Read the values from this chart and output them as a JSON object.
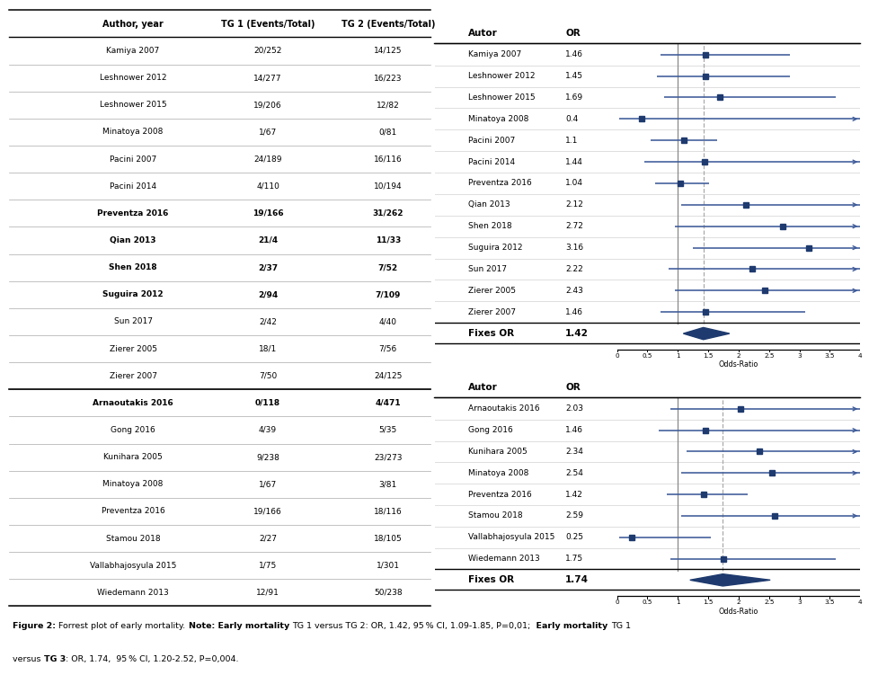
{
  "table_headers": [
    "Author, year",
    "TG 1 (Events/Total)",
    "TG 2 (Events/Total)"
  ],
  "group1_rows": [
    [
      "Kamiya 2007",
      "20/252",
      "14/125"
    ],
    [
      "Leshnower 2012",
      "14/277",
      "16/223"
    ],
    [
      "Leshnower 2015",
      "19/206",
      "12/82"
    ],
    [
      "Minatoya 2008",
      "1/67",
      "0/81"
    ],
    [
      "Pacini 2007",
      "24/189",
      "16/116"
    ],
    [
      "Pacini 2014",
      "4/110",
      "10/194"
    ],
    [
      "Preventza 2016",
      "19/166",
      "31/262"
    ],
    [
      "Qian 2013",
      "21/4",
      "11/33"
    ],
    [
      "Shen 2018",
      "2/37",
      "7/52"
    ],
    [
      "Suguira 2012",
      "2/94",
      "7/109"
    ],
    [
      "Sun 2017",
      "2/42",
      "4/40"
    ],
    [
      "Zierer 2005",
      "18/1",
      "7/56"
    ],
    [
      "Zierer 2007",
      "7/50",
      "24/125"
    ]
  ],
  "group2_rows": [
    [
      "Arnaoutakis 2016",
      "0/118",
      "4/471"
    ],
    [
      "Gong 2016",
      "4/39",
      "5/35"
    ],
    [
      "Kunihara 2005",
      "9/238",
      "23/273"
    ],
    [
      "Minatoya 2008",
      "1/67",
      "3/81"
    ],
    [
      "Preventza 2016",
      "19/166",
      "18/116"
    ],
    [
      "Stamou 2018",
      "2/27",
      "18/105"
    ],
    [
      "Vallabhajosyula 2015",
      "1/75",
      "1/301"
    ],
    [
      "Wiedemann 2013",
      "12/91",
      "50/238"
    ]
  ],
  "f1_authors": [
    "Kamiya 2007",
    "Leshnower 2012",
    "Leshnower 2015",
    "Minatoya 2008",
    "Pacini 2007",
    "Pacini 2014",
    "Preventza 2016",
    "Qian 2013",
    "Shen 2018",
    "Suguira 2012",
    "Sun 2017",
    "Zierer 2005",
    "Zierer 2007"
  ],
  "f1_or": [
    1.46,
    1.45,
    1.69,
    0.4,
    1.1,
    1.44,
    1.04,
    2.12,
    2.72,
    3.16,
    2.22,
    2.43,
    1.46
  ],
  "f1_low": [
    0.72,
    0.65,
    0.78,
    0.04,
    0.55,
    0.45,
    0.62,
    1.05,
    0.95,
    1.25,
    0.85,
    0.95,
    0.72
  ],
  "f1_high": [
    2.85,
    2.85,
    3.6,
    4.1,
    1.65,
    4.1,
    1.52,
    4.1,
    4.1,
    4.1,
    4.1,
    4.1,
    3.1
  ],
  "f1_arrow": [
    false,
    false,
    false,
    true,
    false,
    true,
    false,
    true,
    true,
    true,
    true,
    true,
    false
  ],
  "f1_fixed_or": 1.42,
  "f1_fixed_low": 1.09,
  "f1_fixed_high": 1.85,
  "f2_authors": [
    "Arnaoutakis 2016",
    "Gong 2016",
    "Kunihara 2005",
    "Minatoya 2008",
    "Preventza 2016",
    "Stamou 2018",
    "Vallabhajosyula 2015",
    "Wiedemann 2013"
  ],
  "f2_or": [
    2.03,
    1.46,
    2.34,
    2.54,
    1.42,
    2.59,
    0.25,
    1.75
  ],
  "f2_low": [
    0.88,
    0.68,
    1.15,
    1.05,
    0.82,
    1.05,
    0.04,
    0.88
  ],
  "f2_high": [
    4.1,
    4.1,
    4.1,
    4.1,
    2.15,
    4.1,
    1.55,
    3.6
  ],
  "f2_arrow": [
    true,
    true,
    true,
    true,
    false,
    true,
    false,
    false
  ],
  "f2_fixed_or": 1.74,
  "f2_fixed_low": 1.2,
  "f2_fixed_high": 2.52,
  "xmin": 0,
  "xmax": 4,
  "xtick_vals": [
    0,
    0.5,
    1,
    1.5,
    2,
    2.5,
    3,
    3.5,
    4
  ],
  "xtick_labels": [
    "0",
    "0.5",
    "1",
    "1.5",
    "2",
    "2.5",
    "3",
    "3.5",
    "4"
  ],
  "xlabel": "Odds-Ratio",
  "dot_color": "#1e3a6e",
  "line_color": "#3d5a99",
  "ref_line_color": "#888888",
  "dashed_line_color": "#aaaaaa",
  "sep_line_color": "#cccccc",
  "caption_text": "Figure 2: Forrest plot of early mortality. Note: Early mortality TG 1 versus TG 2: OR, 1.42, 95% Cl, 1.09-1.85, P=0,01;  Early mortality TG 1\nversus TG 3: OR, 1.74, 95 % Cl, 1.20-2.52, P=0,004."
}
